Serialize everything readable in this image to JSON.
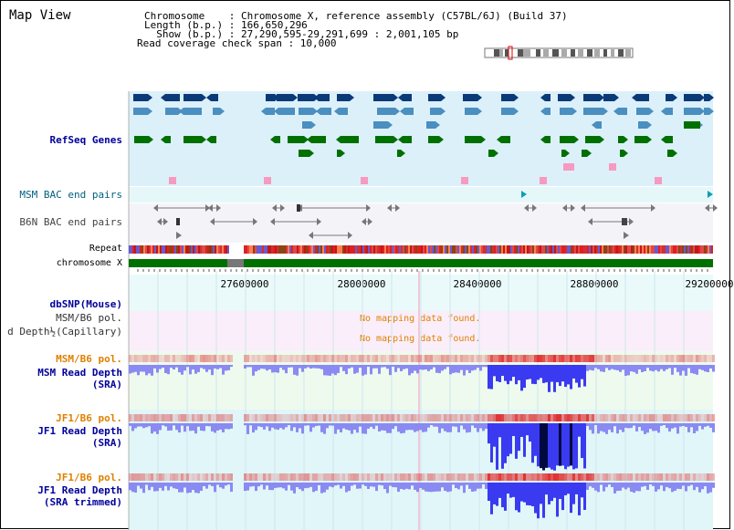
{
  "window": {
    "title": "Map View"
  },
  "info": {
    "line1": "Chromosome    : Chromosome X, reference assembly (C57BL/6J) (Build 37)",
    "line2": "Length (b.p.) : 166,650,296",
    "line3": "  Show (b.p.) : 27,290,595-29,291,699 : 2,001,105 bp",
    "line4": "Read coverage check span : 10,000"
  },
  "tracks": {
    "refseq": "RefSeq Genes",
    "msm_bac": "MSM BAC end pairs",
    "b6n_bac": "B6N BAC end pairs",
    "repeat": "Repeat",
    "chromosome": "chromosome X",
    "dbsnp": "dbSNP(Mouse)",
    "msm_b6_pol_1": "MSM/B6 pol.",
    "read_depth_capillary": "d Depth½(Capillary)",
    "msm_b6_pol_2": "MSM/B6 pol.",
    "msm_read_depth": "MSM Read Depth",
    "msm_read_depth_sub": "(SRA)",
    "jf1_b6_pol_1": "JF1/B6 pol.",
    "jf1_read_depth": "JF1 Read Depth",
    "jf1_read_depth_sub": "(SRA)",
    "jf1_b6_pol_2": "JF1/B6 pol.",
    "jf1_read_depth_trimmed": "JF1 Read Depth",
    "jf1_read_depth_trimmed_sub": "(SRA trimmed)"
  },
  "messages": {
    "no_data_1": "No mapping data found.",
    "no_data_2": "No mapping data found."
  },
  "axis": {
    "ticks": [
      "27600000",
      "28000000",
      "28400000",
      "28800000",
      "29200000"
    ]
  },
  "colors": {
    "gene_dark": "#0a3a78",
    "gene_mid": "#4a8fbf",
    "gene_green": "#007000",
    "bac_pink": "#f79ac0",
    "chromosome_green": "#007000",
    "depth_blue": "#3a3af0",
    "pol_red": "#e03030"
  }
}
